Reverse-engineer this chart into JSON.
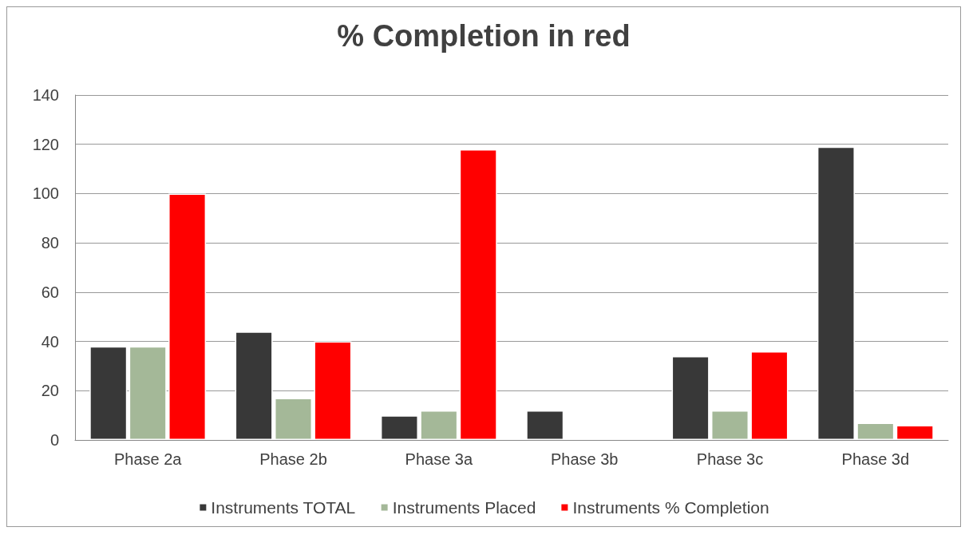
{
  "chart_data": {
    "type": "bar",
    "title": "% Completion in red",
    "categories": [
      "Phase 2a",
      "Phase 2b",
      "Phase 3a",
      "Phase 3b",
      "Phase 3c",
      "Phase 3d"
    ],
    "series": [
      {
        "name": "Instruments TOTAL",
        "color": "#383838",
        "values": [
          38,
          44,
          10,
          12,
          34,
          119
        ]
      },
      {
        "name": "Instruments Placed",
        "color": "#a4b898",
        "values": [
          38,
          17,
          12,
          null,
          12,
          7
        ]
      },
      {
        "name": "Instruments % Completion",
        "color": "#ff0000",
        "values": [
          100,
          40,
          118,
          null,
          36,
          6
        ]
      }
    ],
    "ylim": [
      0,
      140
    ],
    "yticks": [
      0,
      20,
      40,
      60,
      80,
      100,
      120,
      140
    ],
    "grid": "y",
    "legend": "bottom"
  }
}
